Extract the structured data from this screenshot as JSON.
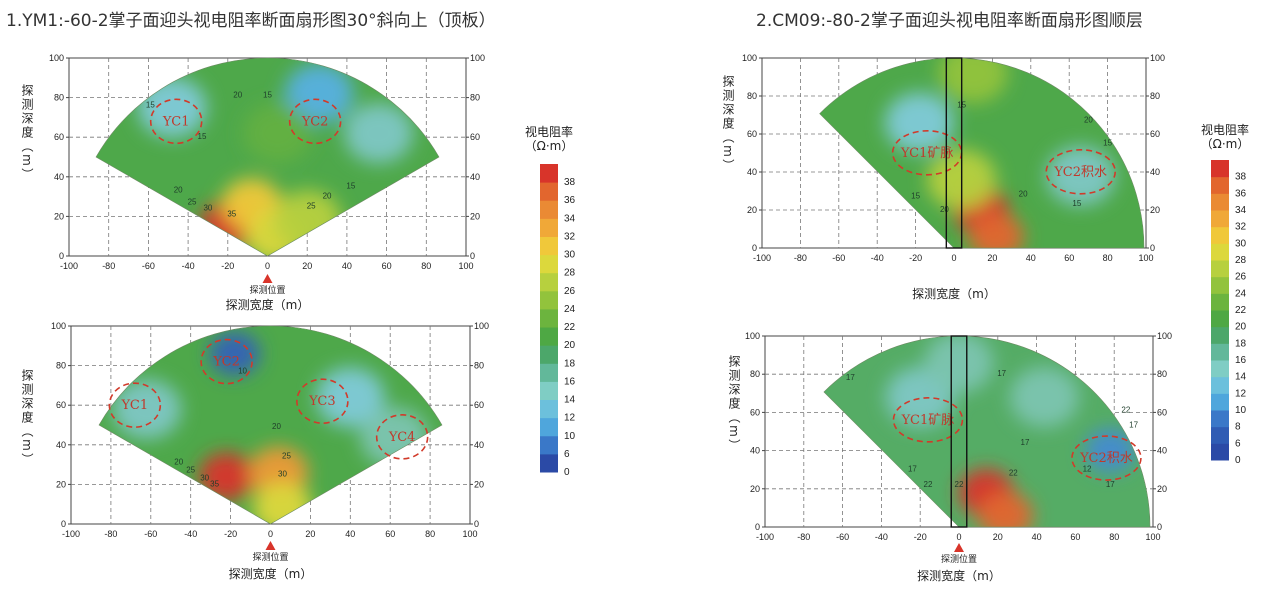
{
  "titles": {
    "left": "1.YM1:-60-2掌子面迎头视电阻率断面扇形图30°斜向上（顶板）",
    "right": "2.CM09:-80-2掌子面迎头视电阻率断面扇形图顺层"
  },
  "colorbar_left": {
    "title_line1": "视电阻率",
    "title_line2": "（Ω·m）",
    "ticks": [
      0,
      6,
      10,
      12,
      14,
      16,
      18,
      20,
      22,
      24,
      26,
      28,
      30,
      32,
      34,
      36,
      38
    ],
    "colors": [
      "#2b4aa6",
      "#3a78c8",
      "#4fa6dc",
      "#6cc0dc",
      "#7fcdc4",
      "#62b89a",
      "#4ca76a",
      "#4ea844",
      "#6cb43e",
      "#92c33c",
      "#b7d03e",
      "#dcd83c",
      "#f0c83a",
      "#f0a838",
      "#ea8a34",
      "#e2662e",
      "#d8342a"
    ]
  },
  "colorbar_right": {
    "title_line1": "视电阻率",
    "title_line2": "（Ω·m）",
    "ticks": [
      0,
      6,
      8,
      10,
      12,
      14,
      16,
      18,
      20,
      22,
      24,
      26,
      28,
      30,
      32,
      34,
      36,
      38
    ],
    "colors": [
      "#2b4aa6",
      "#2f5cb4",
      "#3a78c8",
      "#4fa6dc",
      "#6cc0dc",
      "#7fcdc4",
      "#62b89a",
      "#4ca76a",
      "#4ea844",
      "#6cb43e",
      "#92c33c",
      "#b7d03e",
      "#dcd83c",
      "#f0c83a",
      "#f0a838",
      "#ea8a34",
      "#e2662e",
      "#d8342a"
    ]
  },
  "chart_data": [
    {
      "type": "heatmap",
      "id": "ym1-top",
      "title": "1.YM1:-60-2掌子面迎头视电阻率断面扇形图30°斜向上（顶板）",
      "shape": "fan-sector",
      "sector_angles_deg": [
        30,
        150
      ],
      "xlabel": "探测宽度（m）",
      "ylabel": "探测深度（m）",
      "xlim": [
        -100,
        100
      ],
      "ylim": [
        0,
        100
      ],
      "xticks": [
        -100,
        -80,
        -60,
        -40,
        -20,
        0,
        20,
        40,
        60,
        80,
        100
      ],
      "yticks": [
        0,
        20,
        40,
        60,
        80,
        100
      ],
      "marker_label": "探测位置",
      "marker_x": 0,
      "background_value": 19,
      "anomaly_zones": [
        {
          "label": "YC1",
          "x": -46,
          "y": 66
        },
        {
          "label": "YC2",
          "x": 24,
          "y": 66
        }
      ],
      "blobs": [
        {
          "x": -20,
          "y": 16,
          "value": 38
        },
        {
          "x": -8,
          "y": 26,
          "value": 30
        },
        {
          "x": 4,
          "y": 10,
          "value": 28
        },
        {
          "x": 20,
          "y": 18,
          "value": 26
        },
        {
          "x": -48,
          "y": 75,
          "value": 13
        },
        {
          "x": 26,
          "y": 82,
          "value": 11
        },
        {
          "x": 56,
          "y": 62,
          "value": 14
        },
        {
          "x": 5,
          "y": 62,
          "value": 21
        }
      ],
      "contour_labels": [
        {
          "text": "15",
          "x": -59,
          "y": 75
        },
        {
          "text": "15",
          "x": -33,
          "y": 59
        },
        {
          "text": "20",
          "x": -15,
          "y": 80
        },
        {
          "text": "15",
          "x": 0,
          "y": 80
        },
        {
          "text": "20",
          "x": -45,
          "y": 32
        },
        {
          "text": "25",
          "x": -38,
          "y": 26
        },
        {
          "text": "30",
          "x": -30,
          "y": 23
        },
        {
          "text": "35",
          "x": -18,
          "y": 20
        },
        {
          "text": "25",
          "x": 22,
          "y": 24
        },
        {
          "text": "20",
          "x": 30,
          "y": 29
        },
        {
          "text": "15",
          "x": 42,
          "y": 34
        }
      ]
    },
    {
      "type": "heatmap",
      "id": "ym1-bottom",
      "shape": "fan-sector",
      "sector_angles_deg": [
        30,
        150
      ],
      "xlabel": "探测宽度（m）",
      "ylabel": "探测深度（m）",
      "xlim": [
        -100,
        100
      ],
      "ylim": [
        0,
        100
      ],
      "xticks": [
        -100,
        -80,
        -60,
        -40,
        -20,
        0,
        20,
        40,
        60,
        80,
        100
      ],
      "yticks": [
        0,
        20,
        40,
        60,
        80,
        100
      ],
      "marker_label": "探测位置",
      "marker_x": 0,
      "background_value": 19,
      "anomaly_zones": [
        {
          "label": "YC1",
          "x": -68,
          "y": 58
        },
        {
          "label": "YC2",
          "x": -22,
          "y": 80
        },
        {
          "label": "YC3",
          "x": 26,
          "y": 60
        },
        {
          "label": "YC4",
          "x": 66,
          "y": 42
        }
      ],
      "blobs": [
        {
          "x": -22,
          "y": 24,
          "value": 38
        },
        {
          "x": 4,
          "y": 26,
          "value": 33
        },
        {
          "x": 6,
          "y": 8,
          "value": 28
        },
        {
          "x": -18,
          "y": 86,
          "value": 4
        },
        {
          "x": -62,
          "y": 58,
          "value": 14
        },
        {
          "x": 40,
          "y": 64,
          "value": 13
        },
        {
          "x": 62,
          "y": 44,
          "value": 15
        }
      ],
      "contour_labels": [
        {
          "text": "10",
          "x": -14,
          "y": 76
        },
        {
          "text": "20",
          "x": 3,
          "y": 48
        },
        {
          "text": "25",
          "x": 8,
          "y": 33
        },
        {
          "text": "30",
          "x": 6,
          "y": 24
        },
        {
          "text": "20",
          "x": -46,
          "y": 30
        },
        {
          "text": "25",
          "x": -40,
          "y": 26
        },
        {
          "text": "30",
          "x": -33,
          "y": 22
        },
        {
          "text": "35",
          "x": -28,
          "y": 19
        }
      ]
    },
    {
      "type": "heatmap",
      "id": "cm09-top",
      "title": "2.CM09:-80-2掌子面迎头视电阻率断面扇形图顺层",
      "shape": "fan-sector",
      "sector_angles_deg": [
        0,
        135
      ],
      "xlabel": "探测宽度（m）",
      "ylabel": "探测深度（m）",
      "xlim": [
        -100,
        100
      ],
      "ylim": [
        0,
        100
      ],
      "xticks": [
        -100,
        -80,
        -60,
        -40,
        -20,
        0,
        20,
        40,
        60,
        80,
        100
      ],
      "yticks": [
        0,
        20,
        40,
        60,
        80,
        100
      ],
      "marker_label": "",
      "marker_x": 0,
      "background_value": 19,
      "anomaly_zones": [
        {
          "label": "YC1矿脉",
          "x": -14,
          "y": 48
        },
        {
          "label": "YC2积水",
          "x": 66,
          "y": 38
        }
      ],
      "blobs": [
        {
          "x": 14,
          "y": 20,
          "value": 38
        },
        {
          "x": 22,
          "y": 6,
          "value": 36
        },
        {
          "x": 4,
          "y": 36,
          "value": 26
        },
        {
          "x": -18,
          "y": 66,
          "value": 13
        },
        {
          "x": 66,
          "y": 38,
          "value": 14
        },
        {
          "x": 10,
          "y": 92,
          "value": 24
        }
      ],
      "contour_labels": [
        {
          "text": "20",
          "x": 70,
          "y": 66
        },
        {
          "text": "15",
          "x": 80,
          "y": 54
        },
        {
          "text": "20",
          "x": 36,
          "y": 27
        },
        {
          "text": "15",
          "x": 64,
          "y": 22
        },
        {
          "text": "15",
          "x": 4,
          "y": 74
        },
        {
          "text": "15",
          "x": -20,
          "y": 26
        },
        {
          "text": "20",
          "x": -5,
          "y": 19
        }
      ]
    },
    {
      "type": "heatmap",
      "id": "cm09-bottom",
      "shape": "fan-sector",
      "sector_angles_deg": [
        0,
        135
      ],
      "xlabel": "探测宽度（m）",
      "ylabel": "探测深度（m）",
      "xlim": [
        -100,
        100
      ],
      "ylim": [
        0,
        100
      ],
      "xticks": [
        -100,
        -80,
        -60,
        -40,
        -20,
        0,
        20,
        40,
        60,
        80,
        100
      ],
      "yticks": [
        0,
        20,
        40,
        60,
        80,
        100
      ],
      "marker_label": "探测位置",
      "marker_x": 0,
      "background_value": 18,
      "anomaly_zones": [
        {
          "label": "YC1矿脉",
          "x": -16,
          "y": 54
        },
        {
          "label": "YC2积水",
          "x": 76,
          "y": 34
        }
      ],
      "blobs": [
        {
          "x": 14,
          "y": 18,
          "value": 38
        },
        {
          "x": 24,
          "y": 6,
          "value": 36
        },
        {
          "x": 78,
          "y": 40,
          "value": 9
        },
        {
          "x": -20,
          "y": 68,
          "value": 14
        },
        {
          "x": 44,
          "y": 68,
          "value": 15
        },
        {
          "x": 0,
          "y": 86,
          "value": 15
        }
      ],
      "contour_labels": [
        {
          "text": "17",
          "x": -56,
          "y": 77
        },
        {
          "text": "17",
          "x": 22,
          "y": 79
        },
        {
          "text": "22",
          "x": 86,
          "y": 60
        },
        {
          "text": "17",
          "x": 90,
          "y": 52
        },
        {
          "text": "12",
          "x": 66,
          "y": 29
        },
        {
          "text": "17",
          "x": 78,
          "y": 21
        },
        {
          "text": "17",
          "x": 34,
          "y": 43
        },
        {
          "text": "22",
          "x": 28,
          "y": 27
        },
        {
          "text": "17",
          "x": -24,
          "y": 29
        },
        {
          "text": "22",
          "x": -16,
          "y": 21
        },
        {
          "text": "22",
          "x": 0,
          "y": 21
        }
      ]
    }
  ]
}
